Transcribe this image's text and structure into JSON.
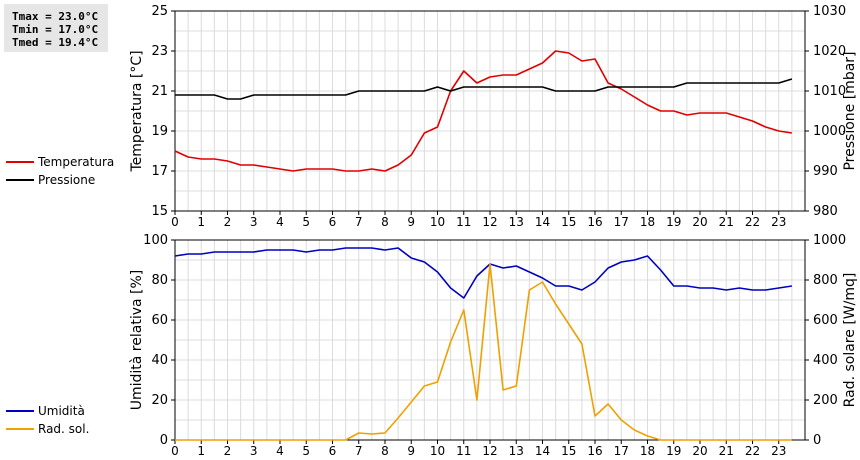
{
  "stats": {
    "tmax": "Tmax = 23.0°C",
    "tmin": "Tmin = 17.0°C",
    "tmed": "Tmed = 19.4°C"
  },
  "chart_data": [
    {
      "type": "line",
      "xlim": [
        0,
        24
      ],
      "xticks": [
        "0",
        "1",
        "2",
        "3",
        "4",
        "5",
        "6",
        "7",
        "8",
        "9",
        "10",
        "11",
        "12",
        "13",
        "14",
        "15",
        "16",
        "17",
        "18",
        "19",
        "20",
        "21",
        "22",
        "23"
      ],
      "ylabel": "Temperatura [°C]",
      "ylim": [
        15,
        25
      ],
      "yticks": [
        "15",
        "17",
        "19",
        "21",
        "23",
        "25"
      ],
      "y2label": "Pressione [mbar]",
      "y2lim": [
        980,
        1030
      ],
      "y2ticks": [
        "980",
        "990",
        "1000",
        "1010",
        "1020",
        "1030"
      ],
      "grid": true,
      "legend": "left",
      "series": [
        {
          "name": "Temperatura",
          "color": "#e00000",
          "axis": "left",
          "x": [
            0,
            0.5,
            1,
            1.5,
            2,
            2.5,
            3,
            3.5,
            4,
            4.5,
            5,
            5.5,
            6,
            6.5,
            7,
            7.5,
            8,
            8.5,
            9,
            9.5,
            10,
            10.5,
            11,
            11.5,
            12,
            12.5,
            13,
            13.5,
            14,
            14.5,
            15,
            15.5,
            16,
            16.5,
            17,
            17.5,
            18,
            18.5,
            19,
            19.5,
            20,
            20.5,
            21,
            21.5,
            22,
            22.5,
            23,
            23.5
          ],
          "y": [
            18.0,
            17.7,
            17.6,
            17.6,
            17.5,
            17.3,
            17.3,
            17.2,
            17.1,
            17.0,
            17.1,
            17.1,
            17.1,
            17.0,
            17.0,
            17.1,
            17.0,
            17.3,
            17.8,
            18.9,
            19.2,
            21.0,
            22.0,
            21.4,
            21.7,
            21.8,
            21.8,
            22.1,
            22.4,
            23.0,
            22.9,
            22.5,
            22.6,
            21.4,
            21.1,
            20.7,
            20.3,
            20.0,
            20.0,
            19.8,
            19.9,
            19.9,
            19.9,
            19.7,
            19.5,
            19.2,
            19.0,
            18.9
          ]
        },
        {
          "name": "Pressione",
          "color": "#000000",
          "axis": "right",
          "x": [
            0,
            0.5,
            1,
            1.5,
            2,
            2.5,
            3,
            3.5,
            4,
            4.5,
            5,
            5.5,
            6,
            6.5,
            7,
            7.5,
            8,
            8.5,
            9,
            9.5,
            10,
            10.5,
            11,
            11.5,
            12,
            12.5,
            13,
            13.5,
            14,
            14.5,
            15,
            15.5,
            16,
            16.5,
            17,
            17.5,
            18,
            18.5,
            19,
            19.5,
            20,
            20.5,
            21,
            21.5,
            22,
            22.5,
            23,
            23.5
          ],
          "y": [
            1009,
            1009,
            1009,
            1009,
            1008,
            1008,
            1009,
            1009,
            1009,
            1009,
            1009,
            1009,
            1009,
            1009,
            1010,
            1010,
            1010,
            1010,
            1010,
            1010,
            1011,
            1010,
            1011,
            1011,
            1011,
            1011,
            1011,
            1011,
            1011,
            1010,
            1010,
            1010,
            1010,
            1011,
            1011,
            1011,
            1011,
            1011,
            1011,
            1012,
            1012,
            1012,
            1012,
            1012,
            1012,
            1012,
            1012,
            1013
          ]
        }
      ]
    },
    {
      "type": "line",
      "xlim": [
        0,
        24
      ],
      "xticks": [
        "0",
        "1",
        "2",
        "3",
        "4",
        "5",
        "6",
        "7",
        "8",
        "9",
        "10",
        "11",
        "12",
        "13",
        "14",
        "15",
        "16",
        "17",
        "18",
        "19",
        "20",
        "21",
        "22",
        "23"
      ],
      "ylabel": "Umidità relativa [%]",
      "ylim": [
        0,
        100
      ],
      "yticks": [
        "0",
        "20",
        "40",
        "60",
        "80",
        "100"
      ],
      "y2label": "Rad. solare [W/mq]",
      "y2lim": [
        0,
        1000
      ],
      "y2ticks": [
        "0",
        "200",
        "400",
        "600",
        "800",
        "1000"
      ],
      "grid": true,
      "legend": "left",
      "series": [
        {
          "name": "Umidità",
          "color": "#0000c0",
          "axis": "left",
          "x": [
            0,
            0.5,
            1,
            1.5,
            2,
            2.5,
            3,
            3.5,
            4,
            4.5,
            5,
            5.5,
            6,
            6.5,
            7,
            7.5,
            8,
            8.5,
            9,
            9.5,
            10,
            10.5,
            11,
            11.5,
            12,
            12.5,
            13,
            13.5,
            14,
            14.5,
            15,
            15.5,
            16,
            16.5,
            17,
            17.5,
            18,
            18.5,
            19,
            19.5,
            20,
            20.5,
            21,
            21.5,
            22,
            22.5,
            23,
            23.5
          ],
          "y": [
            92,
            93,
            93,
            94,
            94,
            94,
            94,
            95,
            95,
            95,
            94,
            95,
            95,
            96,
            96,
            96,
            95,
            96,
            91,
            89,
            84,
            76,
            71,
            82,
            88,
            86,
            87,
            84,
            81,
            77,
            77,
            75,
            79,
            86,
            89,
            90,
            92,
            85,
            77,
            77,
            76,
            76,
            75,
            76,
            75,
            75,
            76,
            77
          ]
        },
        {
          "name": "Rad. sol.",
          "color": "#f0a000",
          "axis": "right",
          "x": [
            0,
            1,
            2,
            3,
            4,
            5,
            6,
            6.5,
            7,
            7.5,
            8,
            8.5,
            9,
            9.5,
            10,
            10.5,
            11,
            11.5,
            12,
            12.5,
            13,
            13.5,
            14,
            14.5,
            15,
            15.5,
            16,
            16.5,
            17,
            17.5,
            18,
            18.5,
            19,
            20,
            21,
            22,
            23,
            23.5
          ],
          "y": [
            0,
            0,
            0,
            0,
            0,
            0,
            0,
            0,
            35,
            30,
            35,
            110,
            190,
            270,
            290,
            490,
            650,
            200,
            880,
            250,
            270,
            750,
            790,
            680,
            580,
            480,
            120,
            180,
            100,
            50,
            20,
            0,
            0,
            0,
            0,
            0,
            0,
            0
          ]
        }
      ]
    }
  ]
}
